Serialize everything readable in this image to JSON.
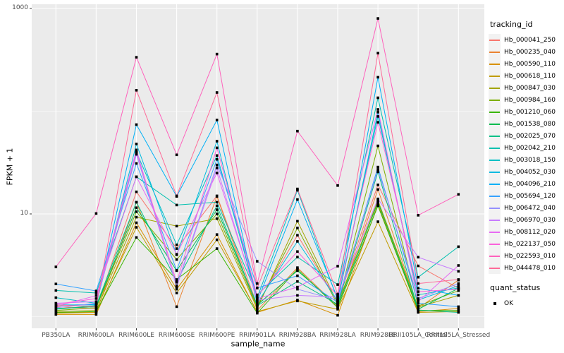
{
  "figure": {
    "colors": {
      "panel_bg": "#EBEBEB",
      "grid": "#FFFFFF",
      "tick_mark": "#333333",
      "tick_text": "#4d4d4d",
      "point": "#000000",
      "legend_key_bg": "#F2F2F2"
    },
    "legend": {
      "tracking_title": "tracking_id",
      "quant_title": "quant_status",
      "quant_items": [
        {
          "label": "OK",
          "marker": "black-square"
        }
      ]
    }
  },
  "chart_data": {
    "type": "line",
    "title": "",
    "xlabel": "sample_name",
    "ylabel": "FPKM + 1",
    "y_scale": "log10",
    "ylim": [
      0.77,
      1100
    ],
    "y_breaks": [
      10,
      1000
    ],
    "y_break_labels": [
      "10",
      "1000"
    ],
    "y_minor_breaks": [
      1,
      100
    ],
    "grid": true,
    "legend_position": "right",
    "point_marker": "black-square",
    "categories": [
      "PB350LA",
      "RRIM600LA",
      "RRIM600LE",
      "RRIM600SE",
      "RRIM600PE",
      "RRIM901LA",
      "RRIM928BA",
      "RRIM928LA",
      "RRIM928LE",
      "RRII105LA_Control",
      "RRII105LA_Stressed"
    ],
    "series": [
      {
        "name": "Hb_000041_250",
        "color": "#F8766D",
        "values": [
          1.25,
          1.2,
          16.4,
          4.6,
          15.0,
          1.3,
          6.2,
          1.4,
          19.2,
          3.12,
          1.89
        ]
      },
      {
        "name": "Hb_000235_040",
        "color": "#EA8331",
        "values": [
          1.1,
          1.1,
          13.0,
          1.25,
          14.8,
          1.15,
          3.0,
          1.25,
          17.3,
          1.21,
          2.27
        ]
      },
      {
        "name": "Hb_000590_110",
        "color": "#D89000",
        "values": [
          1.05,
          1.05,
          8.2,
          1.85,
          6.3,
          1.1,
          1.45,
          1.03,
          12.5,
          1.12,
          1.2
        ]
      },
      {
        "name": "Hb_000618_110",
        "color": "#C09B00",
        "values": [
          1.08,
          1.1,
          7.4,
          1.7,
          5.6,
          1.12,
          1.42,
          1.18,
          8.4,
          1.1,
          1.12
        ]
      },
      {
        "name": "Hb_000847_030",
        "color": "#A3A500",
        "values": [
          1.12,
          1.15,
          9.3,
          7.6,
          9.0,
          1.2,
          8.5,
          1.35,
          13.5,
          1.24,
          1.61
        ]
      },
      {
        "name": "Hb_000984_160",
        "color": "#7CAE00",
        "values": [
          1.15,
          1.22,
          10.5,
          3.6,
          10.0,
          1.25,
          7.3,
          1.3,
          46.0,
          1.27,
          1.79
        ]
      },
      {
        "name": "Hb_001210_060",
        "color": "#39B600",
        "values": [
          1.1,
          1.12,
          5.9,
          2.3,
          4.6,
          1.08,
          2.9,
          1.22,
          12.0,
          1.15,
          1.15
        ]
      },
      {
        "name": "Hb_001538_080",
        "color": "#00BB4E",
        "values": [
          1.2,
          1.25,
          11.5,
          2.8,
          11.0,
          1.3,
          2.8,
          1.28,
          13.0,
          1.18,
          1.89
        ]
      },
      {
        "name": "Hb_002025_070",
        "color": "#00C087",
        "values": [
          1.18,
          1.28,
          13.0,
          2.2,
          12.0,
          1.28,
          2.2,
          1.32,
          25.7,
          1.16,
          1.1
        ]
      },
      {
        "name": "Hb_002042_210",
        "color": "#00C0AF",
        "values": [
          1.8,
          1.7,
          23.0,
          12.2,
          13.0,
          1.63,
          3.8,
          2.05,
          135.0,
          2.42,
          4.8
        ]
      },
      {
        "name": "Hb_003018_150",
        "color": "#00BFC4",
        "values": [
          1.53,
          1.35,
          40.0,
          5.0,
          37.0,
          1.53,
          17.0,
          1.45,
          89.0,
          1.63,
          1.9
        ]
      },
      {
        "name": "Hb_004052_030",
        "color": "#00BAE0",
        "values": [
          1.3,
          1.3,
          48.0,
          4.0,
          51.0,
          1.35,
          5.4,
          1.42,
          98.0,
          1.45,
          2.0
        ]
      },
      {
        "name": "Hb_004096_210",
        "color": "#00B0F6",
        "values": [
          1.28,
          1.32,
          74.0,
          14.8,
          82.0,
          1.4,
          13.8,
          1.5,
          214.0,
          1.89,
          1.61
        ]
      },
      {
        "name": "Hb_005694_120",
        "color": "#35A2FF",
        "values": [
          2.08,
          1.78,
          31.0,
          2.83,
          34.0,
          1.9,
          2.5,
          1.38,
          28.6,
          1.35,
          1.25
        ]
      },
      {
        "name": "Hb_006472_040",
        "color": "#9590FF",
        "values": [
          1.22,
          1.35,
          38.0,
          2.0,
          30.0,
          3.46,
          1.85,
          1.44,
          27.0,
          1.5,
          2.1
        ]
      },
      {
        "name": "Hb_006970_030",
        "color": "#C77CFF",
        "values": [
          1.35,
          1.4,
          42.0,
          1.95,
          28.0,
          1.45,
          1.61,
          1.55,
          14.0,
          3.79,
          2.76
        ]
      },
      {
        "name": "Hb_008112_020",
        "color": "#E76BF3",
        "values": [
          1.26,
          1.6,
          23.0,
          4.05,
          25.0,
          1.5,
          1.94,
          3.1,
          104.0,
          1.4,
          3.15
        ]
      },
      {
        "name": "Hb_022137_050",
        "color": "#FA62DB",
        "values": [
          1.32,
          1.5,
          40.0,
          2.16,
          44.0,
          1.6,
          4.3,
          1.6,
          78.0,
          1.75,
          1.85
        ]
      },
      {
        "name": "Hb_022593_010",
        "color": "#FF62BC",
        "values": [
          3.05,
          10.1,
          335.0,
          37.6,
          360.0,
          2.1,
          64.0,
          18.9,
          800.0,
          9.7,
          15.5
        ]
      },
      {
        "name": "Hb_044478_010",
        "color": "#FF6A98",
        "values": [
          1.3,
          1.25,
          160.0,
          15.0,
          152.0,
          1.9,
          17.5,
          1.66,
          367.0,
          2.1,
          2.3
        ]
      }
    ]
  }
}
